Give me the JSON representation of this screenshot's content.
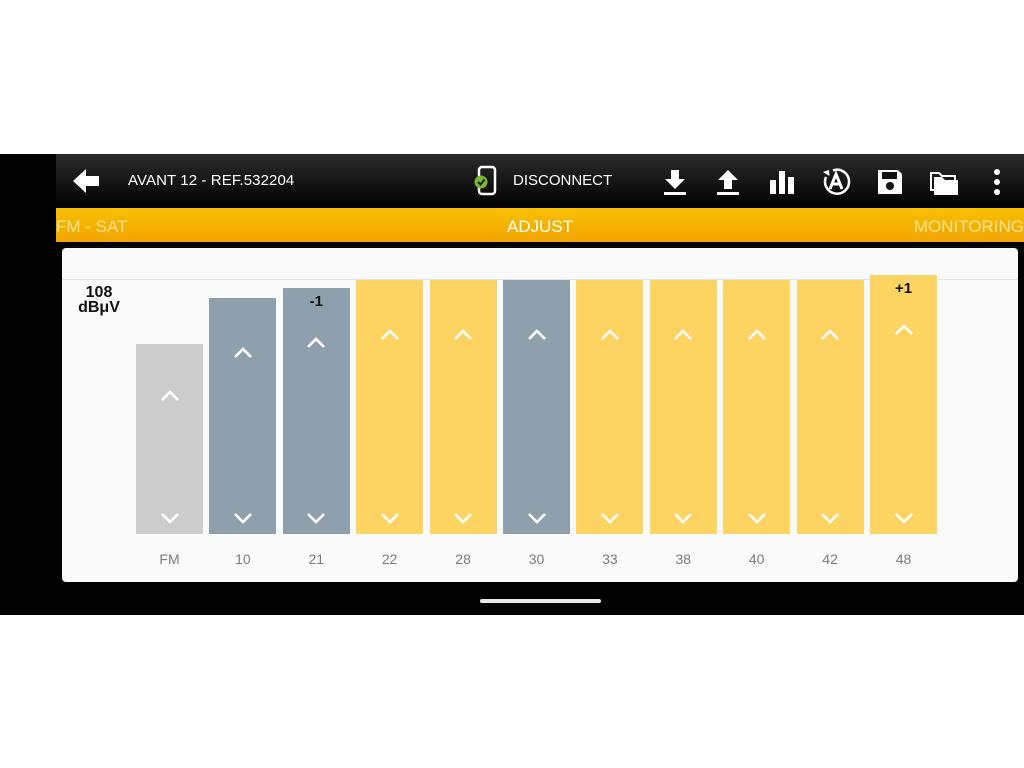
{
  "app": {
    "title": "AVANT 12 - REF.532204",
    "disconnect_label": "DISCONNECT"
  },
  "toolbar": {
    "icons": [
      "download-icon",
      "upload-icon",
      "bar-chart-icon",
      "auto-adjust-icon",
      "save-icon",
      "folder-icon",
      "more-vert-icon"
    ]
  },
  "tabs": {
    "left": "FM - SAT",
    "center": "ADJUST",
    "right": "MONITORING"
  },
  "level": {
    "max_value": "108",
    "unit": "dBμV"
  },
  "colors": {
    "disabled": "#cccccc",
    "selected": "#8fa0ad",
    "normal": "#fdd462",
    "accent": "#f5b000"
  },
  "chart_data": {
    "type": "bar",
    "categories": [
      "FM",
      "10",
      "21",
      "22",
      "28",
      "30",
      "33",
      "38",
      "40",
      "42",
      "48"
    ],
    "values": [
      75,
      93,
      97,
      100,
      100,
      100,
      100,
      100,
      100,
      100,
      102
    ],
    "states": [
      "disabled",
      "selected",
      "selected",
      "normal",
      "normal",
      "selected",
      "normal",
      "normal",
      "normal",
      "normal",
      "normal"
    ],
    "offsets": [
      "",
      "",
      "-1",
      "",
      "",
      "",
      "",
      "",
      "",
      "",
      "+1"
    ],
    "ylim": [
      0,
      100
    ]
  }
}
